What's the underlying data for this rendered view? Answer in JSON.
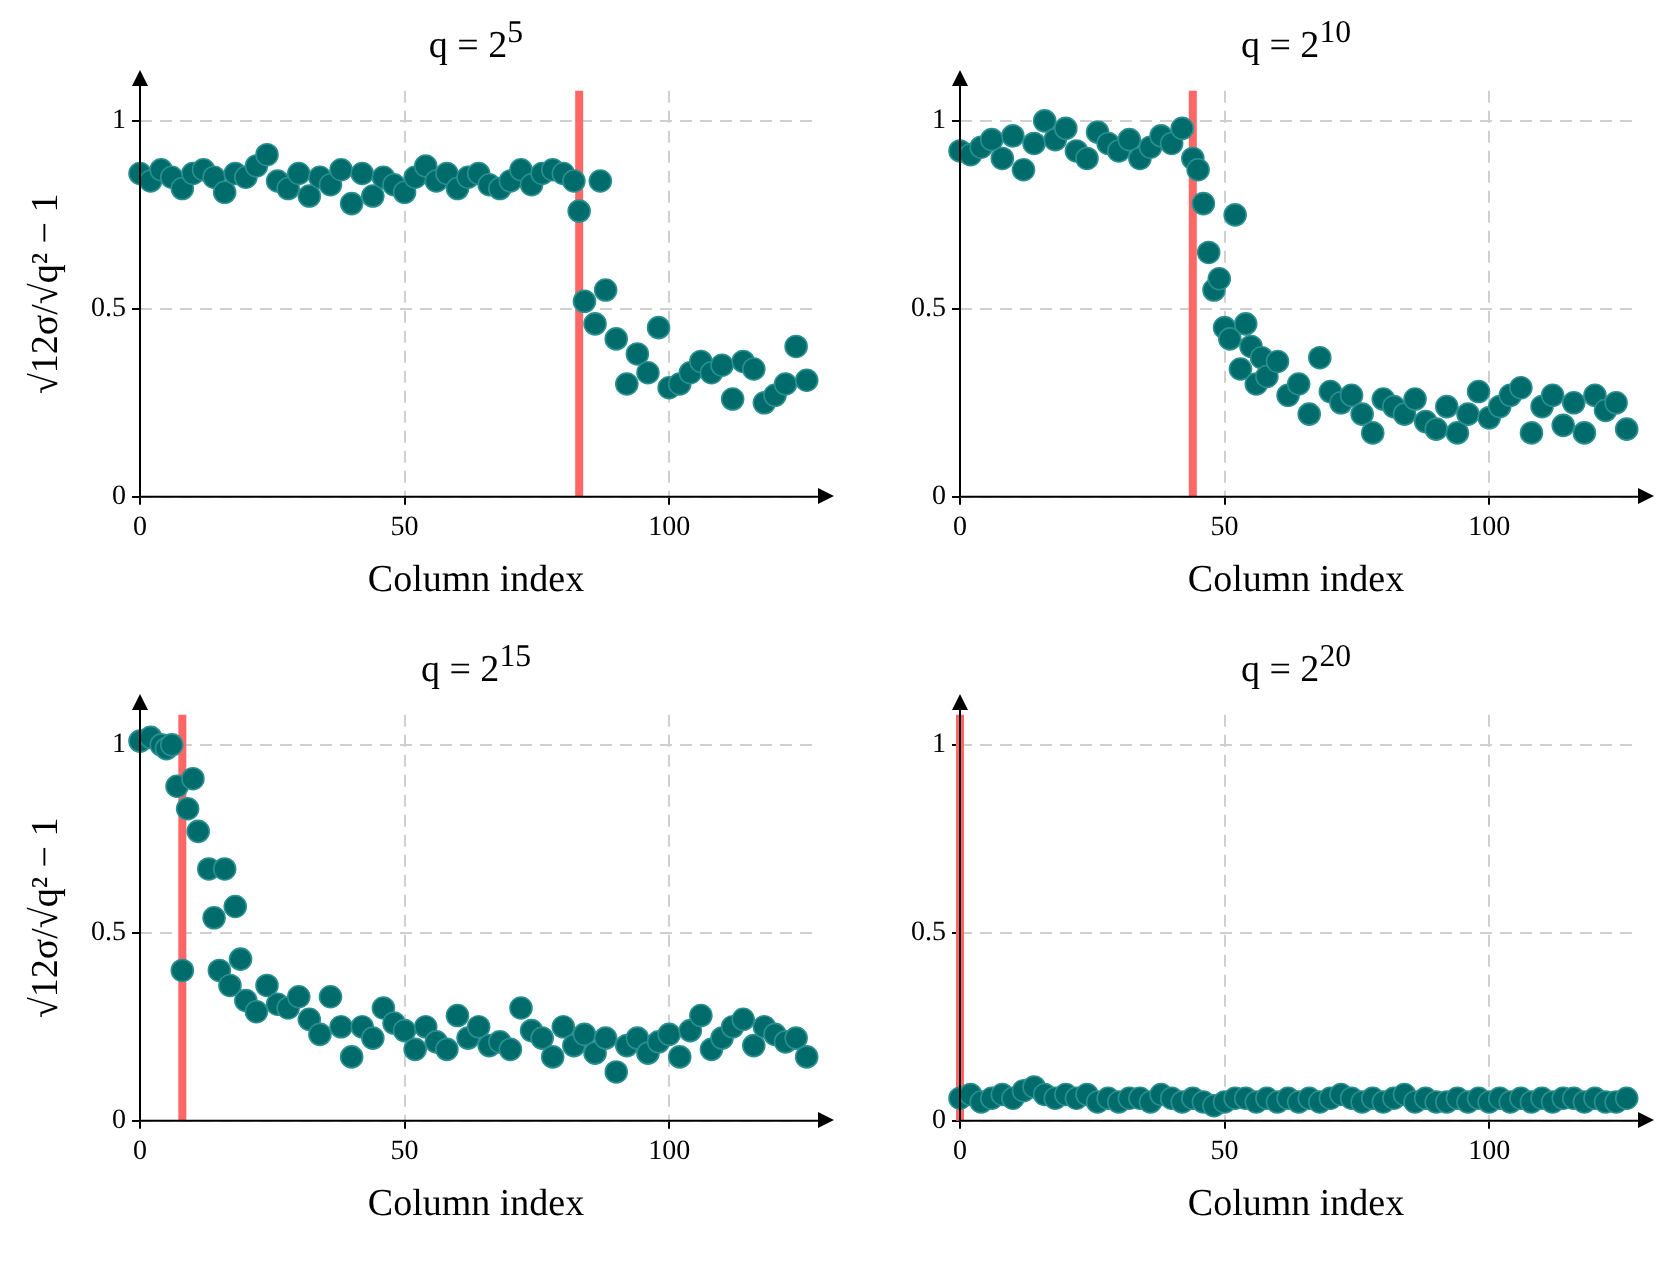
{
  "chart_data": [
    {
      "type": "scatter",
      "title": "q = 2$^{5}$",
      "xlabel": "Column index",
      "ylabel": "√12σ/√q² − 1",
      "xlim": [
        0,
        127
      ],
      "xticks": [
        0,
        50,
        100
      ],
      "ylim": [
        0,
        1.08
      ],
      "yticks": [
        0,
        0.5,
        1
      ],
      "grid": true,
      "legend": false,
      "marker": "circle",
      "ref_lines": [
        {
          "axis": "x",
          "value": 83,
          "color": "#ff6666"
        }
      ],
      "series": [
        {
          "color": "#006b6b",
          "x": [
            0,
            2,
            4,
            6,
            8,
            10,
            12,
            14,
            16,
            18,
            20,
            22,
            24,
            26,
            28,
            30,
            32,
            34,
            36,
            38,
            40,
            42,
            44,
            46,
            48,
            50,
            52,
            54,
            56,
            58,
            60,
            62,
            64,
            66,
            68,
            70,
            72,
            74,
            76,
            78,
            80,
            82,
            83,
            84,
            86,
            87,
            88,
            90,
            92,
            94,
            96,
            98,
            100,
            102,
            104,
            106,
            108,
            110,
            112,
            114,
            116,
            118,
            120,
            122,
            124,
            126
          ],
          "values": [
            0.86,
            0.84,
            0.87,
            0.85,
            0.82,
            0.86,
            0.87,
            0.85,
            0.81,
            0.86,
            0.85,
            0.88,
            0.91,
            0.84,
            0.82,
            0.86,
            0.8,
            0.85,
            0.83,
            0.87,
            0.78,
            0.86,
            0.8,
            0.85,
            0.83,
            0.81,
            0.85,
            0.88,
            0.84,
            0.86,
            0.82,
            0.85,
            0.86,
            0.83,
            0.82,
            0.84,
            0.87,
            0.83,
            0.86,
            0.87,
            0.86,
            0.84,
            0.76,
            0.52,
            0.46,
            0.84,
            0.55,
            0.42,
            0.3,
            0.38,
            0.33,
            0.45,
            0.29,
            0.3,
            0.33,
            0.36,
            0.33,
            0.35,
            0.26,
            0.36,
            0.34,
            0.25,
            0.27,
            0.3,
            0.4,
            0.31
          ]
        }
      ]
    },
    {
      "type": "scatter",
      "title": "q = 2$^{10}$",
      "xlabel": "Column index",
      "xlim": [
        0,
        127
      ],
      "xticks": [
        0,
        50,
        100
      ],
      "ylim": [
        0,
        1.08
      ],
      "yticks": [
        0,
        0.5,
        1
      ],
      "grid": true,
      "legend": false,
      "marker": "circle",
      "ref_lines": [
        {
          "axis": "x",
          "value": 44,
          "color": "#ff6666"
        }
      ],
      "series": [
        {
          "color": "#006b6b",
          "x": [
            0,
            2,
            4,
            6,
            8,
            10,
            12,
            14,
            16,
            18,
            20,
            22,
            24,
            26,
            28,
            30,
            32,
            34,
            36,
            38,
            40,
            42,
            44,
            45,
            46,
            47,
            48,
            49,
            50,
            51,
            52,
            53,
            54,
            55,
            56,
            57,
            58,
            60,
            62,
            64,
            66,
            68,
            70,
            72,
            74,
            76,
            78,
            80,
            82,
            84,
            86,
            88,
            90,
            92,
            94,
            96,
            98,
            100,
            102,
            104,
            106,
            108,
            110,
            112,
            114,
            116,
            118,
            120,
            122,
            124,
            126
          ],
          "values": [
            0.92,
            0.91,
            0.93,
            0.95,
            0.9,
            0.96,
            0.87,
            0.94,
            1.0,
            0.95,
            0.98,
            0.92,
            0.9,
            0.97,
            0.94,
            0.92,
            0.95,
            0.9,
            0.93,
            0.96,
            0.94,
            0.98,
            0.9,
            0.87,
            0.78,
            0.65,
            0.55,
            0.58,
            0.45,
            0.42,
            0.75,
            0.34,
            0.46,
            0.4,
            0.3,
            0.37,
            0.32,
            0.36,
            0.27,
            0.3,
            0.22,
            0.37,
            0.28,
            0.25,
            0.27,
            0.22,
            0.17,
            0.26,
            0.24,
            0.22,
            0.26,
            0.2,
            0.18,
            0.24,
            0.17,
            0.22,
            0.28,
            0.21,
            0.24,
            0.27,
            0.29,
            0.17,
            0.24,
            0.27,
            0.19,
            0.25,
            0.17,
            0.27,
            0.23,
            0.25,
            0.18
          ]
        }
      ]
    },
    {
      "type": "scatter",
      "title": "q = 2$^{15}$",
      "xlabel": "Column index",
      "ylabel": "√12σ/√q² − 1",
      "xlim": [
        0,
        127
      ],
      "xticks": [
        0,
        50,
        100
      ],
      "ylim": [
        0,
        1.08
      ],
      "yticks": [
        0,
        0.5,
        1
      ],
      "grid": true,
      "legend": false,
      "marker": "circle",
      "ref_lines": [
        {
          "axis": "x",
          "value": 8,
          "color": "#ff6666"
        }
      ],
      "series": [
        {
          "color": "#006b6b",
          "x": [
            0,
            2,
            4,
            5,
            6,
            7,
            8,
            9,
            10,
            11,
            13,
            14,
            15,
            16,
            17,
            18,
            19,
            20,
            22,
            24,
            26,
            28,
            30,
            32,
            34,
            36,
            38,
            40,
            42,
            44,
            46,
            48,
            50,
            52,
            54,
            56,
            58,
            60,
            62,
            64,
            66,
            68,
            70,
            72,
            74,
            76,
            78,
            80,
            82,
            84,
            86,
            88,
            90,
            92,
            94,
            96,
            98,
            100,
            102,
            104,
            106,
            108,
            110,
            112,
            114,
            116,
            118,
            120,
            122,
            124,
            126
          ],
          "values": [
            1.01,
            1.02,
            1.0,
            0.99,
            1.0,
            0.89,
            0.4,
            0.83,
            0.91,
            0.77,
            0.67,
            0.54,
            0.4,
            0.67,
            0.36,
            0.57,
            0.43,
            0.32,
            0.29,
            0.36,
            0.31,
            0.3,
            0.33,
            0.27,
            0.23,
            0.33,
            0.25,
            0.17,
            0.25,
            0.22,
            0.3,
            0.26,
            0.24,
            0.19,
            0.25,
            0.21,
            0.19,
            0.28,
            0.22,
            0.25,
            0.2,
            0.21,
            0.19,
            0.3,
            0.24,
            0.22,
            0.17,
            0.25,
            0.2,
            0.23,
            0.18,
            0.22,
            0.13,
            0.2,
            0.22,
            0.18,
            0.21,
            0.23,
            0.17,
            0.24,
            0.28,
            0.19,
            0.22,
            0.25,
            0.27,
            0.2,
            0.25,
            0.23,
            0.21,
            0.22,
            0.17
          ]
        }
      ]
    },
    {
      "type": "scatter",
      "title": "q = 2$^{20}$",
      "xlabel": "Column index",
      "xlim": [
        0,
        127
      ],
      "xticks": [
        0,
        50,
        100
      ],
      "ylim": [
        0,
        1.08
      ],
      "yticks": [
        0,
        0.5,
        1
      ],
      "grid": true,
      "legend": false,
      "marker": "circle",
      "ref_lines": [
        {
          "axis": "x",
          "value": 0,
          "color": "#ff6666"
        }
      ],
      "series": [
        {
          "color": "#006b6b",
          "x": [
            0,
            2,
            4,
            6,
            8,
            10,
            12,
            14,
            16,
            18,
            20,
            22,
            24,
            26,
            28,
            30,
            32,
            34,
            36,
            38,
            40,
            42,
            44,
            46,
            48,
            50,
            52,
            54,
            56,
            58,
            60,
            62,
            64,
            66,
            68,
            70,
            72,
            74,
            76,
            78,
            80,
            82,
            84,
            86,
            88,
            90,
            92,
            94,
            96,
            98,
            100,
            102,
            104,
            106,
            108,
            110,
            112,
            114,
            116,
            118,
            120,
            122,
            124,
            126
          ],
          "values": [
            0.06,
            0.07,
            0.05,
            0.06,
            0.07,
            0.06,
            0.08,
            0.09,
            0.07,
            0.06,
            0.07,
            0.06,
            0.07,
            0.05,
            0.06,
            0.05,
            0.06,
            0.06,
            0.05,
            0.07,
            0.06,
            0.05,
            0.06,
            0.05,
            0.04,
            0.05,
            0.06,
            0.06,
            0.05,
            0.06,
            0.05,
            0.06,
            0.05,
            0.06,
            0.05,
            0.06,
            0.07,
            0.06,
            0.05,
            0.06,
            0.05,
            0.06,
            0.07,
            0.05,
            0.06,
            0.05,
            0.05,
            0.06,
            0.05,
            0.06,
            0.05,
            0.06,
            0.05,
            0.06,
            0.05,
            0.06,
            0.05,
            0.06,
            0.06,
            0.05,
            0.06,
            0.05,
            0.05,
            0.06
          ]
        }
      ]
    }
  ]
}
